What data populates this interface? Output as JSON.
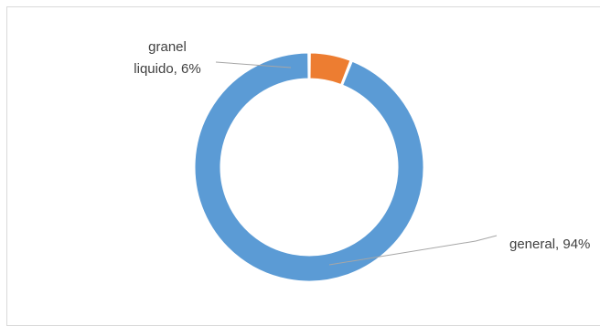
{
  "chart_data": {
    "type": "pie",
    "variant": "doughnut",
    "slices": [
      {
        "name": "general",
        "value": 94,
        "color": "#5b9bd5",
        "label_lines": [
          "general, 94%"
        ]
      },
      {
        "name": "granel liquido",
        "value": 6,
        "color": "#ed7d31",
        "label_lines": [
          "granel",
          "liquido, 6%"
        ]
      }
    ],
    "start_angle_deg": 0,
    "direction": "counterclockwise",
    "title": "",
    "legend": "none",
    "leader_line_color": "#a6a6a6"
  }
}
